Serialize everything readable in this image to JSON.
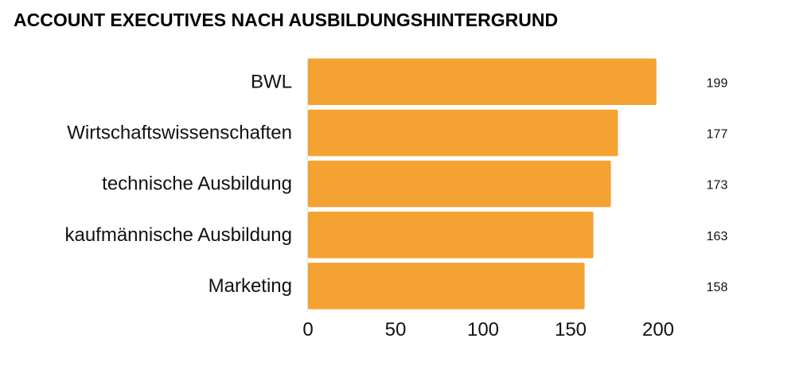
{
  "chart_data": {
    "type": "bar",
    "orientation": "horizontal",
    "title": "ACCOUNT EXECUTIVES NACH AUSBILDUNGSHINTERGRUND",
    "categories": [
      "BWL",
      "Wirtschaftswissenschaften",
      "technische Ausbildung",
      "kaufmännische Ausbildung",
      "Marketing"
    ],
    "values": [
      199,
      177,
      173,
      163,
      158
    ],
    "xlim": [
      0,
      200
    ],
    "xticks": [
      0,
      50,
      100,
      150,
      200
    ],
    "grid": false,
    "legend": "none",
    "colors": {
      "bar": "#F4A232",
      "axis": "#000000"
    }
  }
}
